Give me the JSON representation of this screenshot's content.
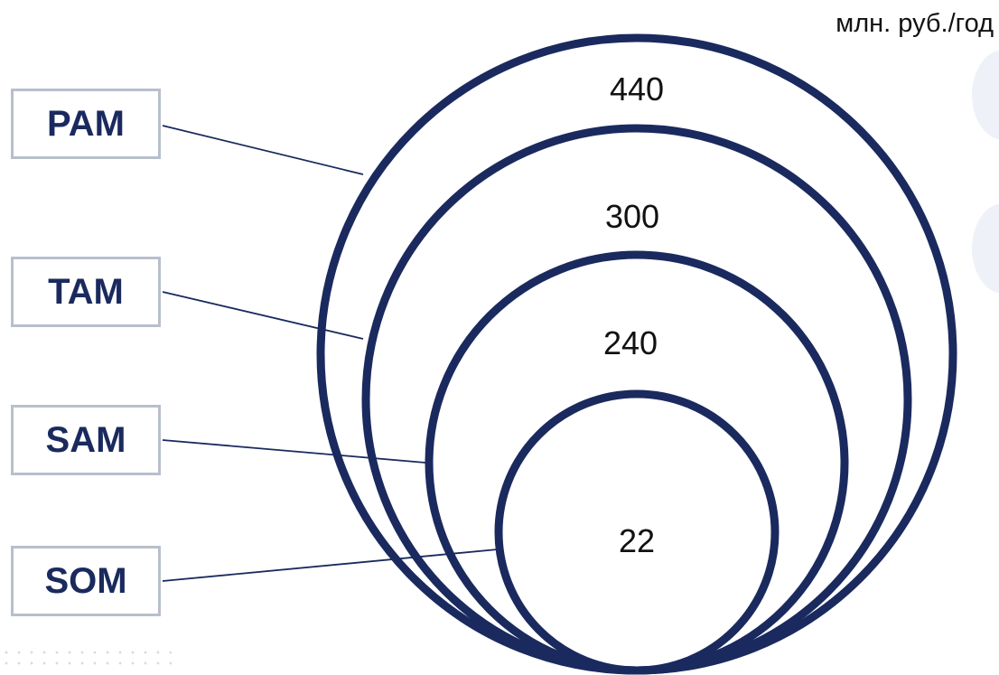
{
  "unit_label": "млн. руб./год",
  "colors": {
    "circle_stroke": "#1a2a5e",
    "box_border": "#b8bfcc",
    "box_text": "#1a2a5e",
    "value_text": "#111111"
  },
  "levels": [
    {
      "label": "PAM",
      "value": "440"
    },
    {
      "label": "TAM",
      "value": "300"
    },
    {
      "label": "SAM",
      "value": "240"
    },
    {
      "label": "SOM",
      "value": "22"
    }
  ]
}
